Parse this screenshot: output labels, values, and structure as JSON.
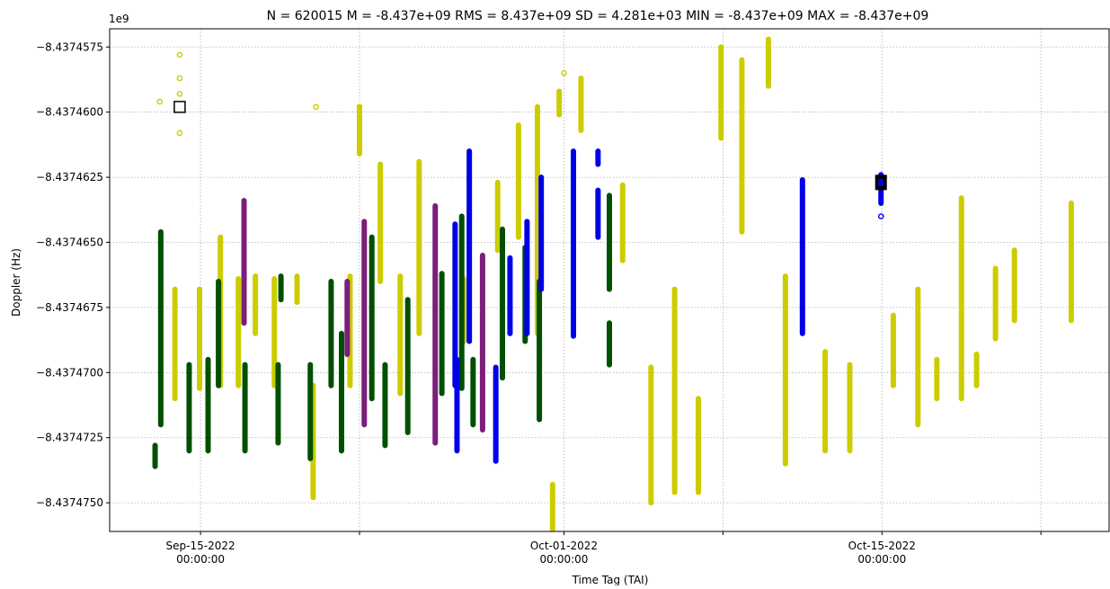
{
  "chart_data": {
    "type": "scatter",
    "title": "N = 620015 M = -8.437e+09 RMS = 8.437e+09 SD = 4.281e+03 MIN = -8.437e+09 MAX = -8.437e+09",
    "xlabel": "Time Tag (TAI)",
    "ylabel": "Doppler (Hz)",
    "y_offset_label": "1e9",
    "grid": true,
    "xlim": [
      "2022-09-11",
      "2022-10-25"
    ],
    "ylim": [
      -8.4374761,
      -8.4374568
    ],
    "x_ticks": [
      {
        "value": "2022-09-15",
        "label_line1": "Sep-15-2022",
        "label_line2": "00:00:00"
      },
      {
        "value": "2022-09-22",
        "label_line1": "",
        "label_line2": ""
      },
      {
        "value": "2022-10-01",
        "label_line1": "Oct-01-2022",
        "label_line2": "00:00:00"
      },
      {
        "value": "2022-10-08",
        "label_line1": "",
        "label_line2": ""
      },
      {
        "value": "2022-10-15",
        "label_line1": "Oct-15-2022",
        "label_line2": "00:00:00"
      },
      {
        "value": "2022-10-22",
        "label_line1": "",
        "label_line2": ""
      }
    ],
    "y_ticks": [
      {
        "value": -8.4374575,
        "label": "−8.4374575"
      },
      {
        "value": -8.43746,
        "label": "−8.4374600"
      },
      {
        "value": -8.4374625,
        "label": "−8.4374625"
      },
      {
        "value": -8.437465,
        "label": "−8.4374650"
      },
      {
        "value": -8.4374675,
        "label": "−8.4374675"
      },
      {
        "value": -8.43747,
        "label": "−8.4374700"
      },
      {
        "value": -8.4374725,
        "label": "−8.4374725"
      },
      {
        "value": -8.437475,
        "label": "−8.4374750"
      }
    ],
    "series": [
      {
        "color": "#cccc00",
        "points": [
          {
            "x": "2022-09-13 05:00",
            "y": -8.4374596
          },
          {
            "x": "2022-09-14 02:00",
            "y": -8.4374578
          },
          {
            "x": "2022-09-14 02:00",
            "y": -8.4374587
          },
          {
            "x": "2022-09-14 02:00",
            "y": -8.4374593
          },
          {
            "x": "2022-09-14 02:00",
            "y": -8.4374608
          },
          {
            "x": "2022-09-20 02:00",
            "y": -8.4374598
          },
          {
            "x": "2022-09-22 00:00",
            "y": -8.4374598
          },
          {
            "x": "2022-10-01 00:00",
            "y": -8.4374585
          }
        ],
        "segments": [
          {
            "x": "2022-09-13 21:00",
            "y_top": -8.4374668,
            "y_bottom": -8.437471
          },
          {
            "x": "2022-09-14 23:00",
            "y_top": -8.4374668,
            "y_bottom": -8.4374706
          },
          {
            "x": "2022-09-15 21:00",
            "y_top": -8.4374648,
            "y_bottom": -8.4374705
          },
          {
            "x": "2022-09-16 16:00",
            "y_top": -8.4374664,
            "y_bottom": -8.4374705
          },
          {
            "x": "2022-09-17 10:00",
            "y_top": -8.4374663,
            "y_bottom": -8.4374685
          },
          {
            "x": "2022-09-18 06:00",
            "y_top": -8.4374664,
            "y_bottom": -8.4374705
          },
          {
            "x": "2022-09-19 06:00",
            "y_top": -8.4374663,
            "y_bottom": -8.4374673
          },
          {
            "x": "2022-09-19 23:00",
            "y_top": -8.4374705,
            "y_bottom": -8.4374748
          },
          {
            "x": "2022-09-21 14:00",
            "y_top": -8.4374663,
            "y_bottom": -8.4374705
          },
          {
            "x": "2022-09-22 00:00",
            "y_top": -8.4374598,
            "y_bottom": -8.4374616
          },
          {
            "x": "2022-09-22 22:00",
            "y_top": -8.437462,
            "y_bottom": -8.4374665
          },
          {
            "x": "2022-09-23 19:00",
            "y_top": -8.4374663,
            "y_bottom": -8.4374708
          },
          {
            "x": "2022-09-24 15:00",
            "y_top": -8.4374619,
            "y_bottom": -8.4374685
          },
          {
            "x": "2022-09-26 14:00",
            "y_top": -8.4374664,
            "y_bottom": -8.4374688
          },
          {
            "x": "2022-09-28 02:00",
            "y_top": -8.4374627,
            "y_bottom": -8.4374653
          },
          {
            "x": "2022-09-29 00:00",
            "y_top": -8.4374605,
            "y_bottom": -8.4374648
          },
          {
            "x": "2022-09-29 20:00",
            "y_top": -8.4374598,
            "y_bottom": -8.4374685
          },
          {
            "x": "2022-09-30 19:00",
            "y_top": -8.4374592,
            "y_bottom": -8.4374601
          },
          {
            "x": "2022-09-30 12:00",
            "y_top": -8.4374743,
            "y_bottom": -8.437476
          },
          {
            "x": "2022-10-01 18:00",
            "y_top": -8.4374587,
            "y_bottom": -8.4374607
          },
          {
            "x": "2022-10-03 14:00",
            "y_top": -8.4374628,
            "y_bottom": -8.4374657
          },
          {
            "x": "2022-10-04 20:00",
            "y_top": -8.4374698,
            "y_bottom": -8.437475
          },
          {
            "x": "2022-10-05 21:00",
            "y_top": -8.4374668,
            "y_bottom": -8.4374746
          },
          {
            "x": "2022-10-06 22:00",
            "y_top": -8.437471,
            "y_bottom": -8.4374746
          },
          {
            "x": "2022-10-07 22:00",
            "y_top": -8.4374575,
            "y_bottom": -8.437461
          },
          {
            "x": "2022-10-08 20:00",
            "y_top": -8.437458,
            "y_bottom": -8.4374646
          },
          {
            "x": "2022-10-10 00:00",
            "y_top": -8.4374572,
            "y_bottom": -8.437459
          },
          {
            "x": "2022-10-10 18:00",
            "y_top": -8.4374663,
            "y_bottom": -8.4374735
          },
          {
            "x": "2022-10-12 12:00",
            "y_top": -8.4374692,
            "y_bottom": -8.437473
          },
          {
            "x": "2022-10-13 14:00",
            "y_top": -8.4374697,
            "y_bottom": -8.437473
          },
          {
            "x": "2022-10-15 12:00",
            "y_top": -8.4374678,
            "y_bottom": -8.4374705
          },
          {
            "x": "2022-10-16 14:00",
            "y_top": -8.4374668,
            "y_bottom": -8.437472
          },
          {
            "x": "2022-10-17 10:00",
            "y_top": -8.4374695,
            "y_bottom": -8.437471
          },
          {
            "x": "2022-10-18 12:00",
            "y_top": -8.4374633,
            "y_bottom": -8.437471
          },
          {
            "x": "2022-10-19 04:00",
            "y_top": -8.4374693,
            "y_bottom": -8.4374705
          },
          {
            "x": "2022-10-20 00:00",
            "y_top": -8.437466,
            "y_bottom": -8.4374687
          },
          {
            "x": "2022-10-20 20:00",
            "y_top": -8.4374653,
            "y_bottom": -8.437468
          },
          {
            "x": "2022-10-23 08:00",
            "y_top": -8.4374635,
            "y_bottom": -8.437468
          }
        ]
      },
      {
        "color": "#005000",
        "points": [],
        "segments": [
          {
            "x": "2022-09-13 00:00",
            "y_top": -8.4374728,
            "y_bottom": -8.4374736
          },
          {
            "x": "2022-09-13 06:00",
            "y_top": -8.4374646,
            "y_bottom": -8.437472
          },
          {
            "x": "2022-09-14 12:00",
            "y_top": -8.4374697,
            "y_bottom": -8.437473
          },
          {
            "x": "2022-09-15 08:00",
            "y_top": -8.4374695,
            "y_bottom": -8.437473
          },
          {
            "x": "2022-09-15 19:00",
            "y_top": -8.4374665,
            "y_bottom": -8.4374705
          },
          {
            "x": "2022-09-16 23:00",
            "y_top": -8.4374697,
            "y_bottom": -8.437473
          },
          {
            "x": "2022-09-18 10:00",
            "y_top": -8.4374697,
            "y_bottom": -8.4374727
          },
          {
            "x": "2022-09-18 13:00",
            "y_top": -8.4374663,
            "y_bottom": -8.4374672
          },
          {
            "x": "2022-09-19 20:00",
            "y_top": -8.4374697,
            "y_bottom": -8.4374733
          },
          {
            "x": "2022-09-20 18:00",
            "y_top": -8.4374665,
            "y_bottom": -8.4374705
          },
          {
            "x": "2022-09-21 05:00",
            "y_top": -8.4374685,
            "y_bottom": -8.437473
          },
          {
            "x": "2022-09-22 13:00",
            "y_top": -8.4374648,
            "y_bottom": -8.437471
          },
          {
            "x": "2022-09-23 03:00",
            "y_top": -8.4374697,
            "y_bottom": -8.4374728
          },
          {
            "x": "2022-09-24 03:00",
            "y_top": -8.4374672,
            "y_bottom": -8.4374723
          },
          {
            "x": "2022-09-25 15:00",
            "y_top": -8.4374662,
            "y_bottom": -8.4374708
          },
          {
            "x": "2022-09-26 12:00",
            "y_top": -8.437464,
            "y_bottom": -8.4374706
          },
          {
            "x": "2022-09-27 00:00",
            "y_top": -8.4374695,
            "y_bottom": -8.437472
          },
          {
            "x": "2022-09-28 07:00",
            "y_top": -8.4374645,
            "y_bottom": -8.4374702
          },
          {
            "x": "2022-09-29 07:00",
            "y_top": -8.4374652,
            "y_bottom": -8.4374688
          },
          {
            "x": "2022-09-29 22:00",
            "y_top": -8.4374665,
            "y_bottom": -8.4374718
          },
          {
            "x": "2022-10-03 00:00",
            "y_top": -8.4374632,
            "y_bottom": -8.4374668
          },
          {
            "x": "2022-10-03 00:00",
            "y_top": -8.4374681,
            "y_bottom": -8.4374697
          }
        ]
      },
      {
        "color": "#7a1f7a",
        "points": [],
        "segments": [
          {
            "x": "2022-09-16 22:00",
            "y_top": -8.4374634,
            "y_bottom": -8.4374681
          },
          {
            "x": "2022-09-21 11:00",
            "y_top": -8.4374665,
            "y_bottom": -8.4374693
          },
          {
            "x": "2022-09-22 05:00",
            "y_top": -8.4374642,
            "y_bottom": -8.437472
          },
          {
            "x": "2022-09-25 08:00",
            "y_top": -8.4374636,
            "y_bottom": -8.4374727
          },
          {
            "x": "2022-09-27 10:00",
            "y_top": -8.4374655,
            "y_bottom": -8.4374722
          }
        ]
      },
      {
        "color": "#0000e6",
        "points": [
          {
            "x": "2022-10-14 23:00",
            "y": -8.437464
          }
        ],
        "segments": [
          {
            "x": "2022-09-26 05:00",
            "y_top": -8.4374643,
            "y_bottom": -8.4374705
          },
          {
            "x": "2022-09-26 07:00",
            "y_top": -8.4374695,
            "y_bottom": -8.437473
          },
          {
            "x": "2022-09-26 20:00",
            "y_top": -8.4374615,
            "y_bottom": -8.4374688
          },
          {
            "x": "2022-09-28 00:00",
            "y_top": -8.4374698,
            "y_bottom": -8.4374734
          },
          {
            "x": "2022-09-28 15:00",
            "y_top": -8.4374656,
            "y_bottom": -8.4374685
          },
          {
            "x": "2022-09-29 09:00",
            "y_top": -8.4374642,
            "y_bottom": -8.4374685
          },
          {
            "x": "2022-09-30 00:00",
            "y_top": -8.4374625,
            "y_bottom": -8.4374668
          },
          {
            "x": "2022-10-01 10:00",
            "y_top": -8.4374615,
            "y_bottom": -8.4374686
          },
          {
            "x": "2022-10-02 12:00",
            "y_top": -8.4374615,
            "y_bottom": -8.437462
          },
          {
            "x": "2022-10-02 12:00",
            "y_top": -8.437463,
            "y_bottom": -8.4374648
          },
          {
            "x": "2022-10-11 12:00",
            "y_top": -8.4374626,
            "y_bottom": -8.4374685
          },
          {
            "x": "2022-10-14 23:00",
            "y_top": -8.4374624,
            "y_bottom": -8.4374635
          }
        ]
      }
    ],
    "markers": [
      {
        "x": "2022-09-14 02:00",
        "y": -8.4374598,
        "style": "open-square-black"
      },
      {
        "x": "2022-10-14 23:00",
        "y": -8.4374627,
        "style": "filled-square-black"
      }
    ]
  }
}
